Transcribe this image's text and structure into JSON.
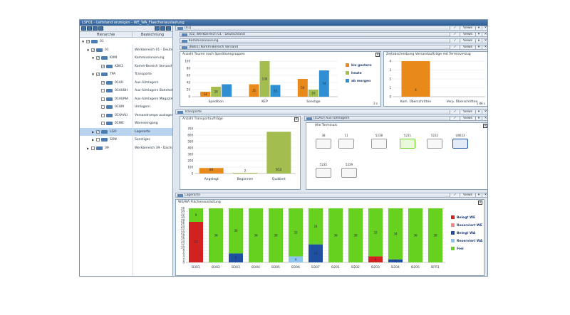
{
  "window": {
    "title": "LSF01 - Leitstand anzeigen - WE_WA_Flaechenauslastung"
  },
  "tree": {
    "col_hierarchy": "Hierarchie",
    "col_description": "Bezeichnung",
    "rows": [
      {
        "code": "01",
        "desc": "",
        "level": 0,
        "checked": true,
        "expanded": true,
        "selected": false
      },
      {
        "code": "01",
        "desc": "Werkbereich 01 - Deutsch",
        "level": 1,
        "checked": true,
        "expanded": true,
        "selected": false
      },
      {
        "code": "KOM",
        "desc": "Kommissionierung",
        "level": 2,
        "checked": true,
        "expanded": true,
        "selected": false
      },
      {
        "code": "KB01",
        "desc": "Komm-Bereich Versand",
        "level": 3,
        "checked": true,
        "expanded": false,
        "selected": false
      },
      {
        "code": "TPA",
        "desc": "Transporte",
        "level": 2,
        "checked": true,
        "expanded": true,
        "selected": false
      },
      {
        "code": "01AU",
        "desc": "Aus-/Umlagern",
        "level": 3,
        "checked": true,
        "expanded": false,
        "selected": false
      },
      {
        "code": "01AUBH",
        "desc": "Aus-/Umlagern Bahnhof",
        "level": 3,
        "checked": false,
        "expanded": false,
        "selected": false
      },
      {
        "code": "01AUMA",
        "desc": "Aus-/Umlagern Magazin",
        "level": 3,
        "checked": false,
        "expanded": false,
        "selected": false
      },
      {
        "code": "01UM",
        "desc": "Umlagern",
        "level": 3,
        "checked": false,
        "expanded": false,
        "selected": false
      },
      {
        "code": "01VAAU",
        "desc": "Versandrampe auslager",
        "level": 3,
        "checked": false,
        "expanded": false,
        "selected": false
      },
      {
        "code": "01WE",
        "desc": "Wareneingang",
        "level": 3,
        "checked": false,
        "expanded": false,
        "selected": false
      },
      {
        "code": "LGO",
        "desc": "Lagerorte",
        "level": 2,
        "checked": true,
        "expanded": false,
        "selected": true
      },
      {
        "code": "SON",
        "desc": "Sonstiges",
        "level": 2,
        "checked": false,
        "expanded": false,
        "selected": false
      },
      {
        "code": "39",
        "desc": "Werkbereich 39 - Dachor",
        "level": 1,
        "checked": false,
        "expanded": false,
        "selected": false
      }
    ]
  },
  "headers": {
    "root": "[01]",
    "werk": "[01] Werkbereich 01 - Deutschland",
    "kom": "Kommissionierung",
    "kb01": "[KB01] Komm-Bereich Versand",
    "tpa": "Transporte",
    "au": "[01AU] Aus-/Umlagern",
    "lgo": "Lagerorte",
    "view_label": "Views"
  },
  "panels": {
    "touren_title": "Anzahl Touren nach Speditionsgruppen",
    "zeit_title": "Zeitabschreibung Versandaufträge mit Terminverzug",
    "transport_title": "Anzahl Transportaufträge",
    "terminals_title": "Alle Terminals",
    "flaeche_title": "WE/WA Flächenauslastung",
    "touren_footer": "2 s",
    "zeit_footer": "1 86 s"
  },
  "terminals": [
    "38",
    "11",
    "5238",
    "5231",
    "5232",
    "U8023",
    "5235",
    "5239"
  ],
  "colors": {
    "orange": "#e8891b",
    "olive": "#a3bd4e",
    "blue": "#2f8fd2",
    "red": "#d32020",
    "pink": "#f08a8a",
    "navy": "#1f4fa0",
    "lightblue": "#8ec5ee",
    "green": "#66d11e"
  },
  "chart_data": [
    {
      "type": "bar",
      "title": "Anzahl Touren nach Speditionsgruppen",
      "categories": [
        "Spedition",
        "KEP",
        "Sonstige"
      ],
      "series": [
        {
          "name": "bis gestern",
          "values": [
            14,
            35,
            50
          ]
        },
        {
          "name": "heute",
          "values": [
            28,
            100,
            20
          ]
        },
        {
          "name": "ab morgen",
          "values": [
            35,
            33,
            74
          ]
        }
      ],
      "labels": [
        [
          "14",
          "28",
          ""
        ],
        [
          "35",
          "100",
          "33"
        ],
        [
          "50",
          "20",
          "74"
        ]
      ],
      "yticks": [
        0,
        20,
        40,
        60,
        80,
        100
      ],
      "ylim": [
        0,
        100
      ],
      "legend": "right"
    },
    {
      "type": "bar",
      "title": "Zeitabschreibung Versandaufträge mit Terminverzug",
      "categories": [
        "Kom. Überschritten",
        "Verp. Überschritten"
      ],
      "values": [
        4,
        0
      ],
      "yticks": [
        0,
        1,
        2,
        3,
        4
      ],
      "ylim": [
        0,
        4
      ]
    },
    {
      "type": "bar",
      "title": "Anzahl Transportaufträge",
      "categories": [
        "Angelegt",
        "Begonnen",
        "Quittiert"
      ],
      "values": [
        86,
        2,
        652
      ],
      "yticks": [
        0,
        100,
        200,
        300,
        400,
        500,
        600,
        700
      ],
      "ylim": [
        0,
        700
      ]
    },
    {
      "type": "bar",
      "stacked": true,
      "title": "WE/WA Flächenauslastung",
      "categories": [
        "B301",
        "B302",
        "B303",
        "B304",
        "B305",
        "B306",
        "B307",
        "B201",
        "B202",
        "B203",
        "B204",
        "B205",
        "BFR1"
      ],
      "series": [
        {
          "name": "Belegt WE",
          "values": [
            27,
            0,
            0,
            0,
            0,
            0,
            0,
            0,
            0,
            4,
            0,
            0,
            0
          ]
        },
        {
          "name": "Reserviert WE",
          "values": [
            0,
            0,
            0,
            0,
            0,
            0,
            0,
            0,
            0,
            0,
            0,
            0,
            0
          ]
        },
        {
          "name": "Belegt WA",
          "values": [
            0,
            0,
            6,
            0,
            0,
            0,
            12,
            0,
            0,
            0,
            2,
            0,
            0
          ]
        },
        {
          "name": "Reserviert WA",
          "values": [
            0,
            0,
            0,
            0,
            0,
            4,
            0,
            0,
            0,
            0,
            0,
            0,
            0
          ]
        },
        {
          "name": "Frei",
          "values": [
            9,
            36,
            30,
            36,
            36,
            32,
            24,
            36,
            36,
            32,
            34,
            36,
            36
          ]
        }
      ],
      "yticks": [
        0,
        2,
        4,
        6,
        8,
        10,
        12,
        14,
        16,
        18,
        20,
        22,
        24,
        26,
        28,
        30,
        32,
        34,
        36
      ],
      "ylim": [
        0,
        36
      ],
      "legend": "right"
    }
  ]
}
